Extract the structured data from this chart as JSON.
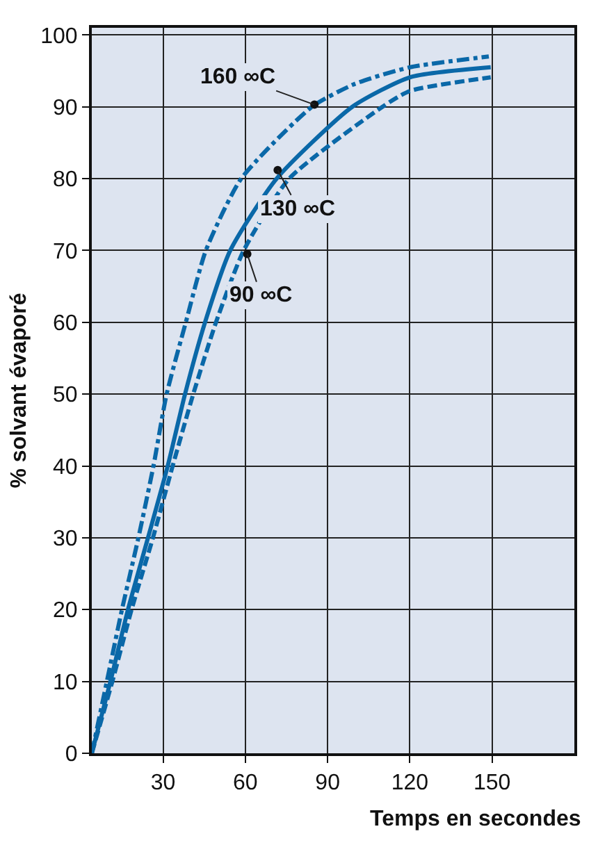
{
  "chart_data": {
    "type": "line",
    "xlabel": "Temps en secondes",
    "ylabel": "% solvant évaporé",
    "xlim": [
      4,
      180
    ],
    "xticks": [
      30,
      60,
      90,
      120,
      150
    ],
    "ylim": [
      0,
      101
    ],
    "yticks": [
      0,
      10,
      20,
      30,
      40,
      50,
      60,
      70,
      80,
      90,
      100
    ],
    "grid": true,
    "marker": "none",
    "series": [
      {
        "color": "#0a68a8",
        "line_style": "dashdot",
        "x": [
          4,
          9.5,
          15,
          21,
          26.5,
          31.3,
          38.3,
          45.6,
          58.5,
          84.3,
          100,
          120,
          148.8
        ],
        "values": [
          0,
          10,
          20,
          30,
          40,
          50,
          60,
          70,
          80,
          90,
          93.2,
          95.5,
          97.0
        ]
      },
      {
        "color": "#0a68a8",
        "line_style": "solid",
        "x": [
          4,
          10.8,
          17.2,
          24.5,
          31.7,
          38,
          45.3,
          54.5,
          71.4,
          99,
          120,
          149.5
        ],
        "values": [
          0,
          10,
          20,
          30,
          40,
          50,
          60,
          70,
          80,
          90,
          94.1,
          95.5
        ]
      },
      {
        "color": "#0a68a8",
        "line_style": "dashed",
        "x": [
          4,
          11.5,
          18.5,
          26.3,
          33.5,
          41,
          49.3,
          59.4,
          76,
          110,
          120,
          149.5
        ],
        "values": [
          0,
          10,
          20,
          30,
          40,
          50,
          60,
          70,
          80,
          90,
          92.2,
          94.1
        ]
      }
    ],
    "annotations": [
      {
        "text": "160 ∞C",
        "x": 85.2,
        "y": 90.3
      },
      {
        "text": "130 ∞C",
        "x": 71.8,
        "y": 81.2
      },
      {
        "text": "90 ∞C",
        "x": 60.7,
        "y": 69.5
      }
    ]
  }
}
